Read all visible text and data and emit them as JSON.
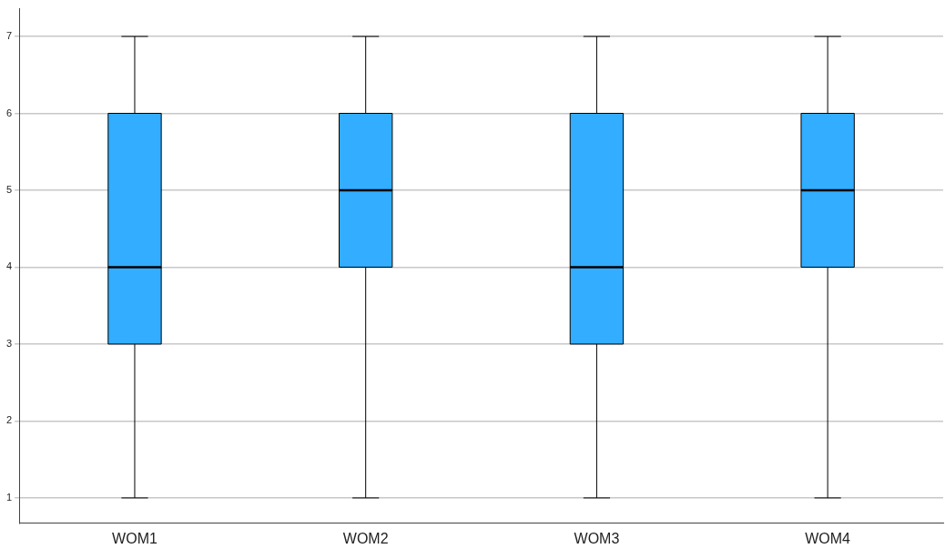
{
  "chart_data": {
    "type": "box",
    "categories": [
      "WOM1",
      "WOM2",
      "WOM3",
      "WOM4"
    ],
    "color": "#33adff",
    "boxes": [
      {
        "low": 1,
        "q1": 3,
        "median": 4,
        "q3": 6,
        "high": 7
      },
      {
        "low": 1,
        "q1": 4,
        "median": 5,
        "q3": 6,
        "high": 7
      },
      {
        "low": 1,
        "q1": 3,
        "median": 4,
        "q3": 6,
        "high": 7
      },
      {
        "low": 1,
        "q1": 4,
        "median": 5,
        "q3": 6,
        "high": 7
      }
    ],
    "ylim": [
      0.67,
      7.36
    ],
    "yticks": [
      1,
      2,
      3,
      4,
      5,
      6,
      7
    ],
    "grid": "y"
  }
}
